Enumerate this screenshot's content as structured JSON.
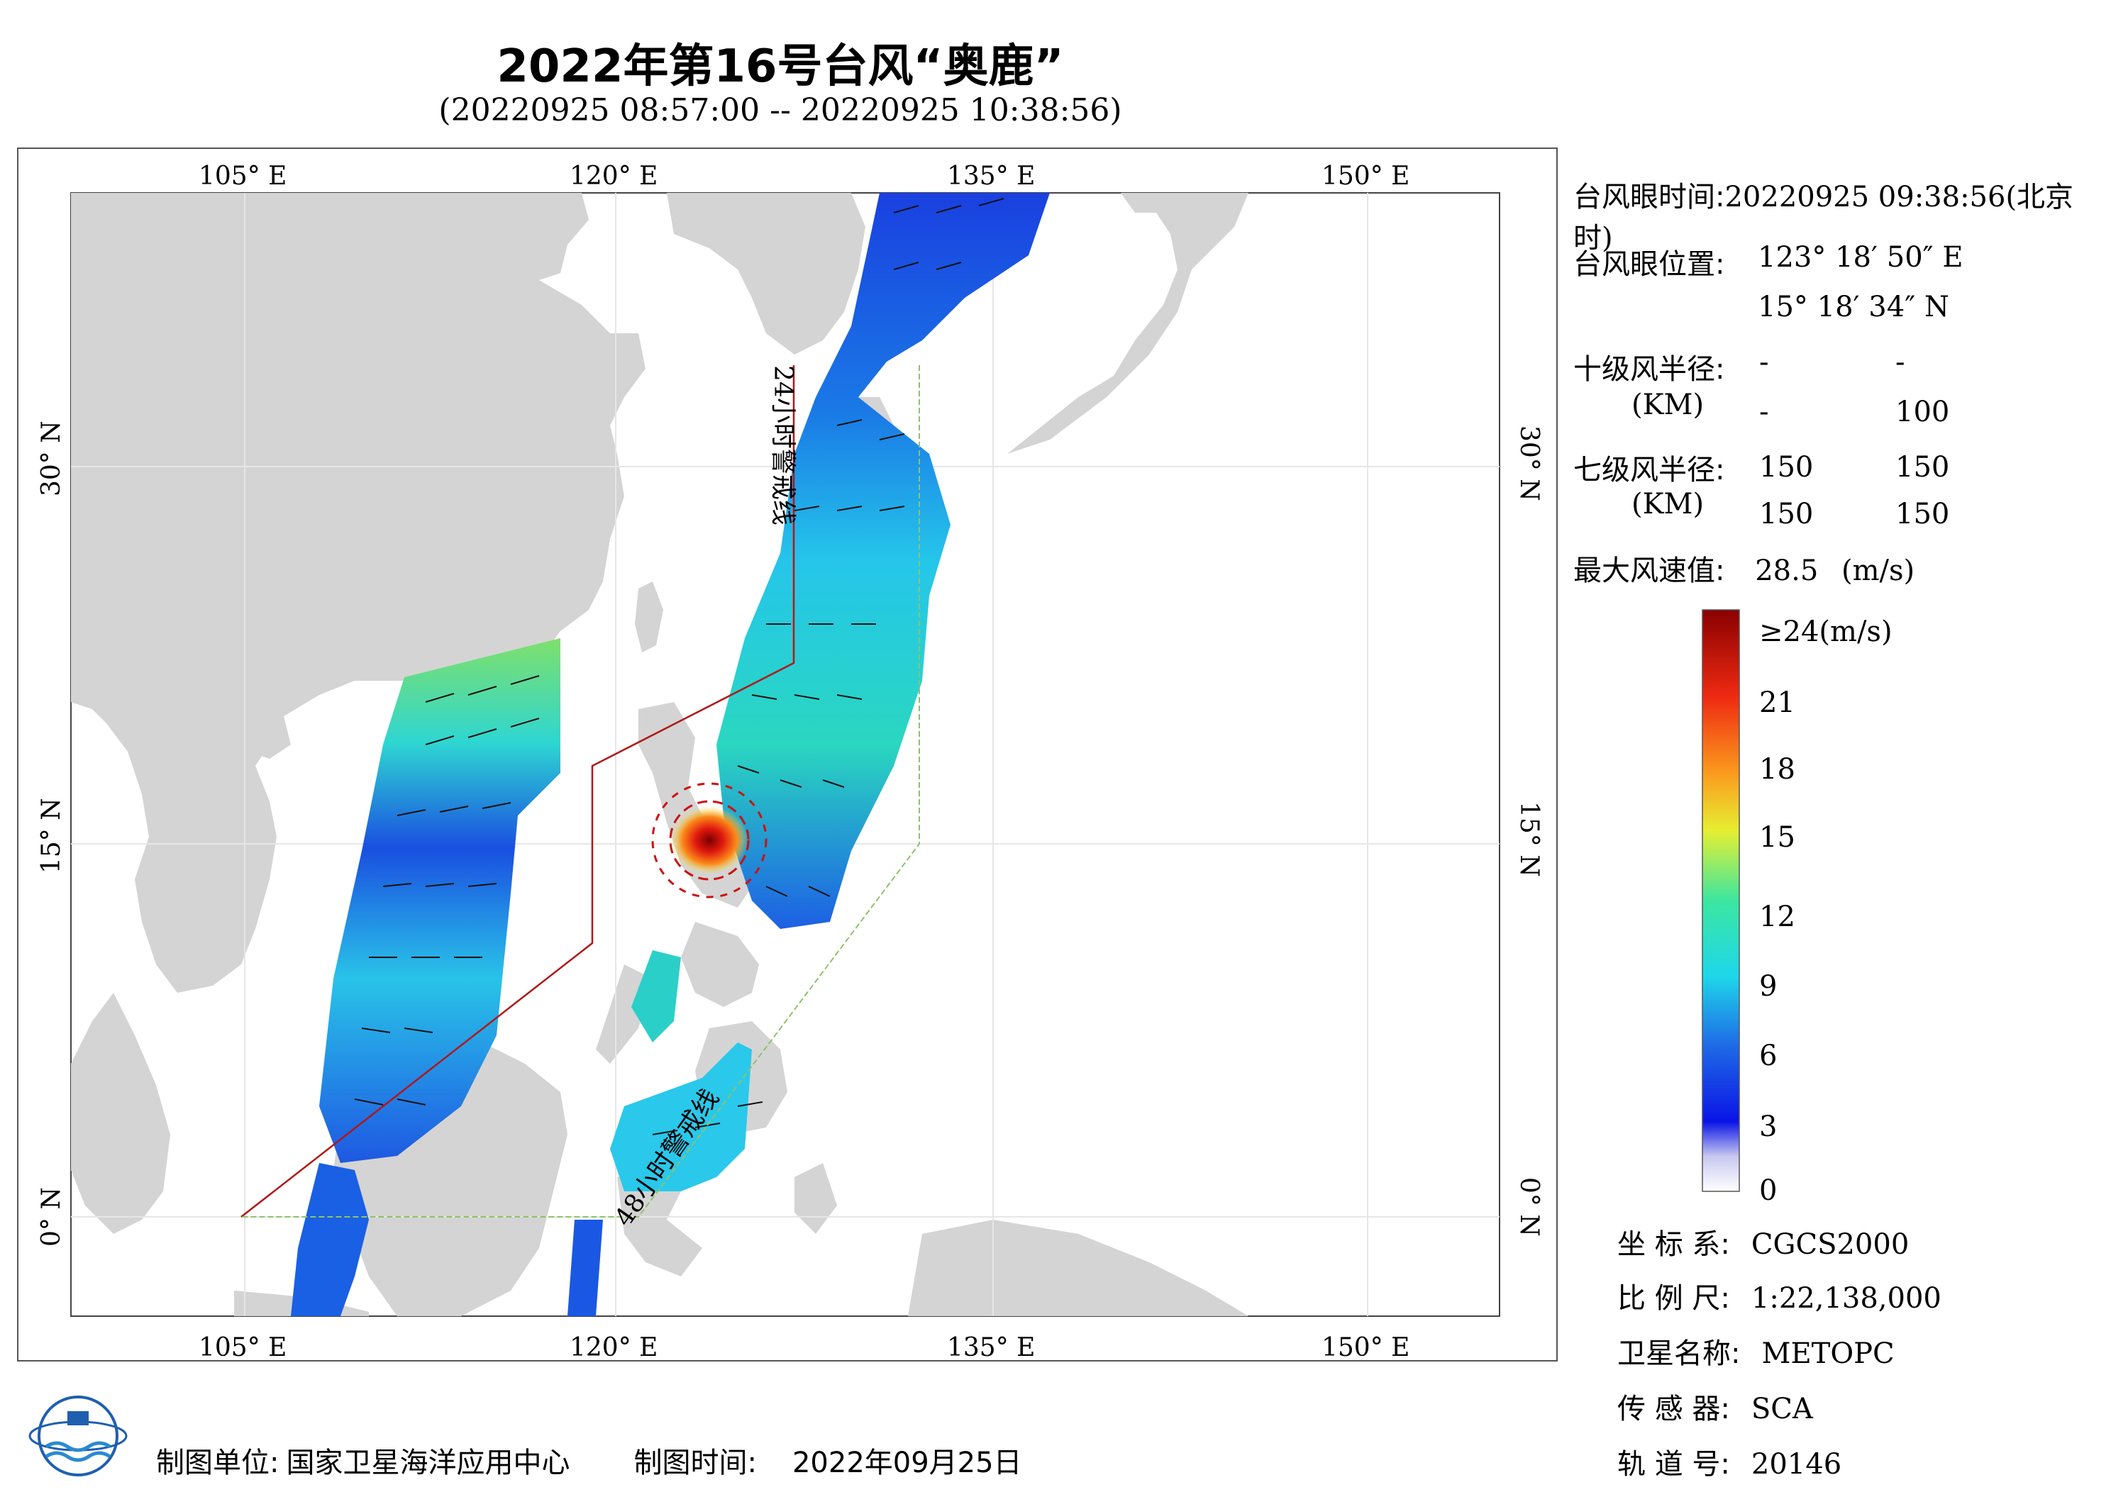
{
  "header": {
    "title": "2022年第16号台风“奥鹿”",
    "time_range": "(20220925 08:57:00 -- 20220925 10:38:56)"
  },
  "map": {
    "lon_labels_top": [
      "105° E",
      "120° E",
      "135° E",
      "150° E"
    ],
    "lon_labels_bottom": [
      "105° E",
      "120° E",
      "135° E",
      "150° E"
    ],
    "lat_labels_left": [
      "30° N",
      "15° N",
      "0° N"
    ],
    "lat_labels_right": [
      "30° N",
      "15° N",
      "0° N"
    ],
    "line_24h_label": "24小时警戒线",
    "line_48h_label": "48小时警戒线",
    "colors": {
      "land": "#d4d4d4",
      "sea": "#ffffff",
      "warn24": "#b01818",
      "warn48": "#8fc26a"
    }
  },
  "info": {
    "eye_time_label": "台风眼时间:",
    "eye_time_value": "20220925 09:38:56(北京时)",
    "eye_pos_label": "台风眼位置:",
    "eye_lon": "123° 18′ 50″ E",
    "eye_lat": "15° 18′ 34″ N",
    "r10_label": "十级风半径:",
    "r10_unit": "(KM)",
    "r10_values": [
      "-",
      "-",
      "-",
      "100"
    ],
    "r7_label": "七级风半径:",
    "r7_unit": "(KM)",
    "r7_values": [
      "150",
      "150",
      "150",
      "150"
    ],
    "max_wind_label": "最大风速值:",
    "max_wind_value": "28.5",
    "max_wind_unit": "(m/s)"
  },
  "colorbar": {
    "top_label": "≥24(m/s)",
    "ticks": [
      "21",
      "18",
      "15",
      "12",
      "9",
      "6",
      "3",
      "0"
    ]
  },
  "meta": {
    "crs_label": "坐 标 系:",
    "crs_value": "CGCS2000",
    "scale_label": "比 例 尺:",
    "scale_value": "1:22,138,000",
    "sat_label": "卫星名称:",
    "sat_value": "METOPC",
    "sensor_label": "传 感 器:",
    "sensor_value": "SCA",
    "orbit_label": "轨 道 号:",
    "orbit_value": "20146"
  },
  "footer": {
    "maker_label": "制图单位:",
    "maker_value": "国家卫星海洋应用中心",
    "date_label": "制图时间:",
    "date_value": "2022年09月25日"
  }
}
